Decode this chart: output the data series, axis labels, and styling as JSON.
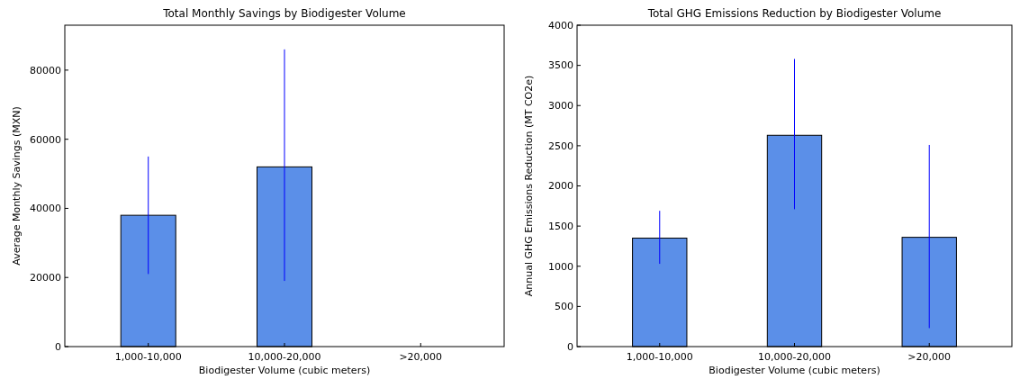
{
  "chart_data": [
    {
      "type": "bar",
      "title": "Total Monthly Savings by Biodigester Volume",
      "xlabel": "Biodigester Volume (cubic meters)",
      "ylabel": "Average Monthly Savings (MXN)",
      "categories": [
        "1,000-10,000",
        "10,000-20,000",
        ">20,000"
      ],
      "values": [
        38000,
        52000,
        null
      ],
      "errors": [
        [
          21000,
          55000
        ],
        [
          19000,
          86000
        ],
        null
      ],
      "color": "#5b8fe8",
      "ylim": [
        0,
        93000
      ],
      "yticks": [
        0,
        20000,
        40000,
        60000,
        80000
      ]
    },
    {
      "type": "bar",
      "title": "Total GHG Emissions Reduction by Biodigester Volume",
      "xlabel": "Biodigester Volume (cubic meters)",
      "ylabel": "Annual GHG Emissions Reduction (MT CO2e)",
      "categories": [
        "1,000-10,000",
        "10,000-20,000",
        ">20,000"
      ],
      "values": [
        1350,
        2630,
        1360
      ],
      "errors": [
        [
          1030,
          1690
        ],
        [
          1710,
          3580
        ],
        [
          230,
          2510
        ]
      ],
      "color": "#5b8fe8",
      "ylim": [
        0,
        4000
      ],
      "yticks": [
        0,
        500,
        1000,
        1500,
        2000,
        2500,
        3000,
        3500,
        4000
      ]
    }
  ]
}
